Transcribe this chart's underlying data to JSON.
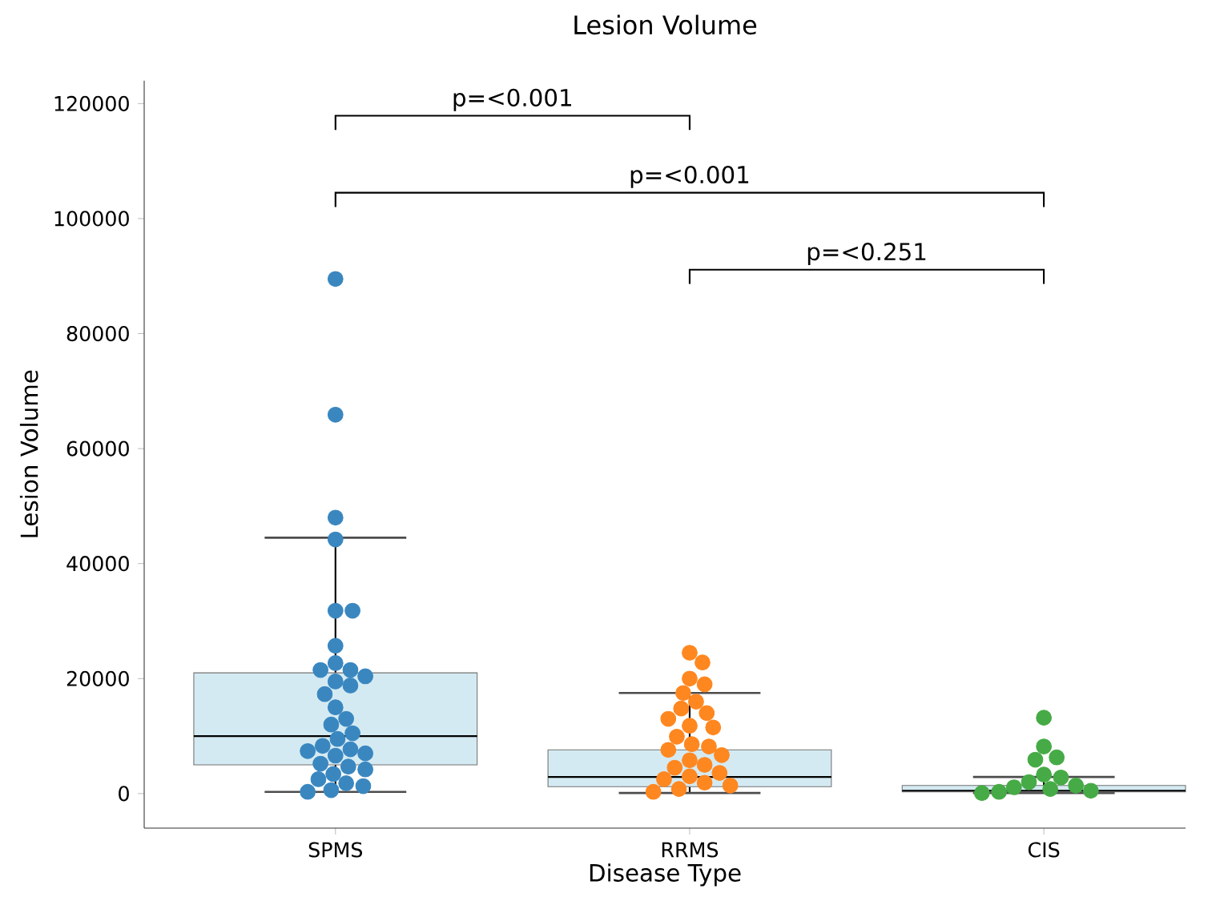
{
  "chart_data": {
    "type": "box",
    "title": "Lesion Volume",
    "xlabel": "Disease Type",
    "ylabel": "Lesion Volume",
    "categories": [
      "SPMS",
      "RRMS",
      "CIS"
    ],
    "ylim": [
      -6000,
      124000
    ],
    "yticks": [
      0,
      20000,
      40000,
      60000,
      80000,
      100000,
      120000
    ],
    "grid": false,
    "series": [
      {
        "color": "#d4eaf2",
        "boxes": [
          {
            "low": 300,
            "q1": 5000,
            "median": 10000,
            "q3": 21000,
            "high": 44500
          },
          {
            "low": 100,
            "q1": 1200,
            "median": 2900,
            "q3": 7600,
            "high": 17500
          },
          {
            "low": 100,
            "q1": 300,
            "median": 500,
            "q3": 1400,
            "high": 2900
          }
        ]
      },
      {
        "type": "scatter",
        "color": "#3a87c0",
        "x": [
          "SPMS",
          "SPMS",
          "SPMS",
          "SPMS",
          "SPMS",
          "SPMS",
          "SPMS",
          "SPMS",
          "SPMS",
          "SPMS",
          "SPMS",
          "SPMS",
          "SPMS",
          "SPMS",
          "SPMS",
          "SPMS",
          "SPMS",
          "SPMS",
          "SPMS",
          "SPMS",
          "SPMS",
          "SPMS",
          "SPMS",
          "SPMS",
          "SPMS",
          "SPMS",
          "SPMS",
          "SPMS",
          "SPMS",
          "SPMS",
          "SPMS",
          "SPMS",
          "SPMS"
        ],
        "values": [
          89500,
          65900,
          48000,
          44200,
          31800,
          31800,
          25700,
          22700,
          21500,
          21500,
          20400,
          19500,
          18800,
          17300,
          15000,
          13000,
          12000,
          10500,
          9500,
          8300,
          7700,
          7400,
          7000,
          6600,
          5200,
          4700,
          4200,
          3400,
          2500,
          1800,
          1300,
          600,
          300
        ]
      },
      {
        "type": "scatter",
        "color": "#ff8720",
        "x": [
          "RRMS",
          "RRMS",
          "RRMS",
          "RRMS",
          "RRMS",
          "RRMS",
          "RRMS",
          "RRMS",
          "RRMS",
          "RRMS",
          "RRMS",
          "RRMS",
          "RRMS",
          "RRMS",
          "RRMS",
          "RRMS",
          "RRMS",
          "RRMS",
          "RRMS",
          "RRMS",
          "RRMS",
          "RRMS",
          "RRMS",
          "RRMS",
          "RRMS",
          "RRMS"
        ],
        "values": [
          24500,
          22800,
          20000,
          19000,
          17500,
          16000,
          14800,
          14000,
          13000,
          11800,
          11500,
          9900,
          8600,
          8200,
          7600,
          6700,
          5800,
          5000,
          4500,
          3600,
          3000,
          2500,
          1900,
          1400,
          800,
          300
        ]
      },
      {
        "type": "scatter",
        "color": "#46ab46",
        "x": [
          "CIS",
          "CIS",
          "CIS",
          "CIS",
          "CIS",
          "CIS",
          "CIS",
          "CIS",
          "CIS",
          "CIS",
          "CIS",
          "CIS",
          "CIS"
        ],
        "values": [
          13200,
          8200,
          6300,
          5900,
          3300,
          2800,
          2000,
          1400,
          1100,
          800,
          500,
          300,
          100
        ]
      }
    ],
    "annotations": [
      "p=<0.001",
      "p=<0.001",
      "p=<0.251"
    ]
  }
}
